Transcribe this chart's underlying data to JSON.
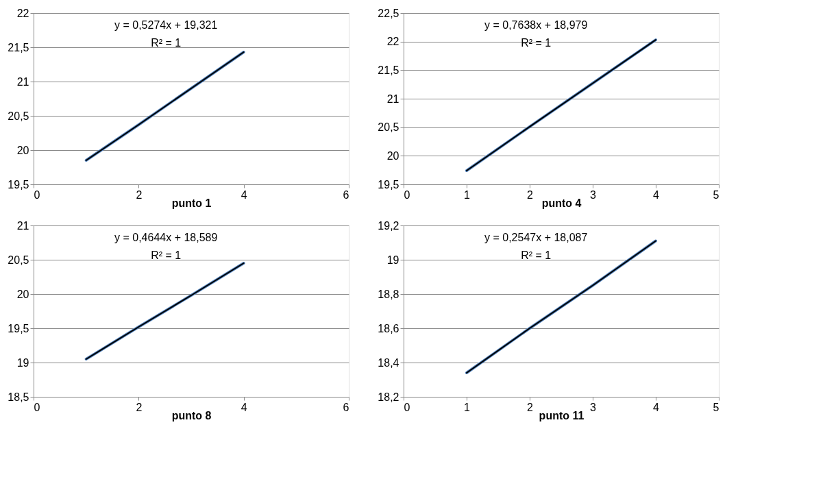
{
  "chart_data": [
    {
      "type": "line",
      "xlabel": "punto 1",
      "x": [
        1,
        2,
        3,
        4
      ],
      "xlim": [
        0,
        6
      ],
      "xticks": [
        0,
        2,
        4,
        6
      ],
      "ylim": [
        19.5,
        22
      ],
      "yticks": [
        {
          "value": 19.5,
          "label": "19,5"
        },
        20,
        {
          "value": 20.5,
          "label": "20,5"
        },
        21,
        {
          "value": 21.5,
          "label": "21,5"
        },
        22
      ],
      "grid": "y",
      "annotations": [
        "y = 0,5274x + 19,321",
        "R² = 1"
      ],
      "series": [
        {
          "color": "#4f81bd",
          "values": [
            19.85,
            20.37,
            20.9,
            21.43
          ]
        },
        {
          "type": "line",
          "color": "#000000",
          "values": [
            19.85,
            20.37,
            20.9,
            21.43
          ]
        }
      ]
    },
    {
      "type": "line",
      "xlabel": "punto 4",
      "x": [
        1,
        2,
        3,
        4
      ],
      "xlim": [
        0,
        5
      ],
      "xticks": [
        0,
        1,
        2,
        3,
        4,
        5
      ],
      "ylim": [
        19.5,
        22.5
      ],
      "yticks": [
        {
          "value": 19.5,
          "label": "19,5"
        },
        20,
        {
          "value": 20.5,
          "label": "20,5"
        },
        21,
        {
          "value": 21.5,
          "label": "21,5"
        },
        22,
        {
          "value": 22.5,
          "label": "22,5"
        }
      ],
      "grid": "y",
      "annotations": [
        "y = 0,7638x + 18,979",
        "R² = 1"
      ],
      "series": [
        {
          "color": "#4f81bd",
          "values": [
            19.74,
            20.51,
            21.27,
            22.03
          ]
        },
        {
          "type": "line",
          "color": "#000000",
          "values": [
            19.74,
            20.51,
            21.27,
            22.03
          ]
        }
      ]
    },
    {
      "type": "line",
      "xlabel": "punto 8",
      "x": [
        1,
        2,
        3,
        4
      ],
      "xlim": [
        0,
        6
      ],
      "xticks": [
        0,
        2,
        4,
        6
      ],
      "ylim": [
        18.5,
        21
      ],
      "yticks": [
        {
          "value": 18.5,
          "label": "18,5"
        },
        19,
        {
          "value": 19.5,
          "label": "19,5"
        },
        20,
        {
          "value": 20.5,
          "label": "20,5"
        },
        21
      ],
      "grid": "y",
      "annotations": [
        "y = 0,4644x + 18,589",
        "R² = 1"
      ],
      "series": [
        {
          "color": "#4f81bd",
          "values": [
            19.05,
            19.52,
            19.98,
            20.45
          ]
        },
        {
          "type": "line",
          "color": "#000000",
          "values": [
            19.05,
            19.52,
            19.98,
            20.45
          ]
        }
      ]
    },
    {
      "type": "line",
      "xlabel": "punto 11",
      "x": [
        1,
        2,
        3,
        4
      ],
      "xlim": [
        0,
        5
      ],
      "xticks": [
        0,
        1,
        2,
        3,
        4,
        5
      ],
      "ylim": [
        18.2,
        19.2
      ],
      "yticks": [
        {
          "value": 18.2,
          "label": "18,2"
        },
        {
          "value": 18.4,
          "label": "18,4"
        },
        {
          "value": 18.6,
          "label": "18,6"
        },
        {
          "value": 18.8,
          "label": "18,8"
        },
        19,
        {
          "value": 19.2,
          "label": "19,2"
        }
      ],
      "grid": "y",
      "annotations": [
        "y = 0,2547x + 18,087",
        "R² = 1"
      ],
      "series": [
        {
          "color": "#4f81bd",
          "values": [
            18.34,
            18.6,
            18.85,
            19.11
          ]
        },
        {
          "type": "line",
          "color": "#000000",
          "values": [
            18.34,
            18.6,
            18.85,
            19.11
          ]
        }
      ]
    }
  ]
}
